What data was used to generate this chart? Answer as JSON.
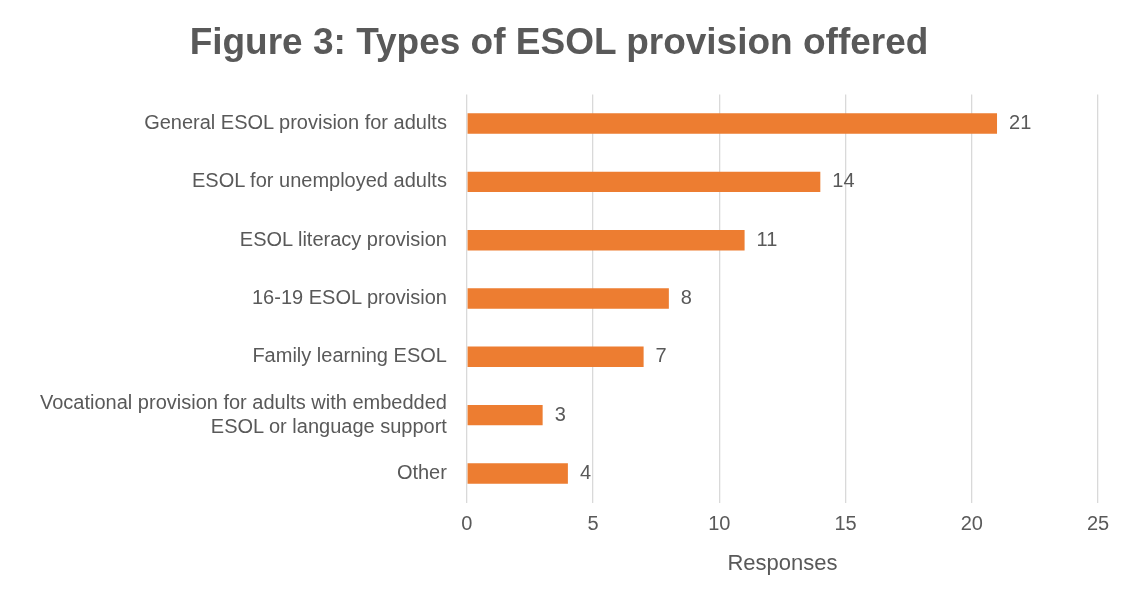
{
  "chart_data": {
    "type": "bar",
    "orientation": "horizontal",
    "title": "Figure 3: Types of ESOL provision offered",
    "categories": [
      "General ESOL provision for adults",
      "ESOL for unemployed adults",
      "ESOL literacy provision",
      "16-19 ESOL provision",
      "Family learning ESOL",
      "Vocational provision for adults with embedded ESOL or language support",
      "Other"
    ],
    "values": [
      21,
      14,
      11,
      8,
      7,
      3,
      4
    ],
    "color": "#ed7d31",
    "xlabel": "Responses",
    "xlim": [
      0,
      25
    ],
    "xticks": [
      0,
      5,
      10,
      15,
      20,
      25
    ],
    "grid": "x",
    "legend": false,
    "data_labels": true
  }
}
